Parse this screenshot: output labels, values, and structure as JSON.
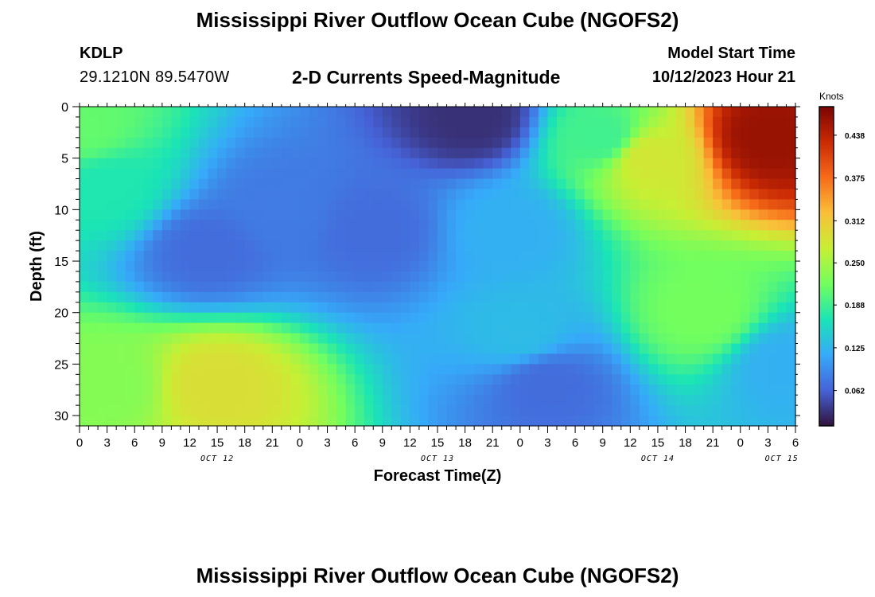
{
  "header": {
    "title": "Mississippi River Outflow Ocean Cube (NGOFS2)",
    "station_id": "KDLP",
    "coords": "29.1210N  89.5470W",
    "product": "2-D Currents Speed-Magnitude",
    "model_start_label": "Model Start Time",
    "model_start_value": "10/12/2023 Hour 21"
  },
  "footer": {
    "title": "Mississippi River Outflow Ocean Cube (NGOFS2)"
  },
  "colors": {
    "colormap": [
      "#30123b",
      "#4662d7",
      "#36aaf9",
      "#1ae4b6",
      "#72fe5e",
      "#c7ef34",
      "#fabf39",
      "#f66b19",
      "#ca2a04",
      "#7a0403"
    ]
  },
  "chart_data": {
    "type": "heatmap",
    "title": "2-D Currents Speed-Magnitude",
    "xlabel": "Forecast Time(Z)",
    "ylabel": "Depth (ft)",
    "x_tick_labels": [
      "0",
      "3",
      "6",
      "9",
      "12",
      "15",
      "18",
      "21",
      "0",
      "3",
      "6",
      "9",
      "12",
      "15",
      "18",
      "21",
      "0",
      "3",
      "6",
      "9",
      "12",
      "15",
      "18",
      "21",
      "0",
      "3",
      "6"
    ],
    "date_labels": [
      "OCT 12",
      "OCT 13",
      "OCT 14",
      "OCT 15"
    ],
    "x_range_hours": [
      0,
      78
    ],
    "ylim": [
      0,
      31
    ],
    "y_ticks": [
      0,
      5,
      10,
      15,
      20,
      25,
      30
    ],
    "y_inverted": true,
    "colorbar": {
      "label": "Knots",
      "ticks": [
        "0.062",
        "0.125",
        "0.188",
        "0.250",
        "0.312",
        "0.375",
        "0.438"
      ],
      "range": [
        0.01,
        0.48
      ]
    },
    "speed_anchors": [
      {
        "hour": 0,
        "depth_ft": 2,
        "knots": 0.21
      },
      {
        "hour": 3,
        "depth_ft": 8,
        "knots": 0.17
      },
      {
        "hour": 14,
        "depth_ft": 14,
        "knots": 0.07
      },
      {
        "hour": 22,
        "depth_ft": 10,
        "knots": 0.08
      },
      {
        "hour": 32,
        "depth_ft": 12,
        "knots": 0.07
      },
      {
        "hour": 43,
        "depth_ft": 1,
        "knots": 0.03
      },
      {
        "hour": 47,
        "depth_ft": 12,
        "knots": 0.12
      },
      {
        "hour": 48,
        "depth_ft": 22,
        "knots": 0.13
      },
      {
        "hour": 51,
        "depth_ft": 27,
        "knots": 0.07
      },
      {
        "hour": 57,
        "depth_ft": 3,
        "knots": 0.19
      },
      {
        "hour": 62,
        "depth_ft": 5,
        "knots": 0.28
      },
      {
        "hour": 75,
        "depth_ft": 3,
        "knots": 0.46
      },
      {
        "hour": 68,
        "depth_ft": 20,
        "knots": 0.22
      },
      {
        "hour": 77,
        "depth_ft": 25,
        "knots": 0.12
      },
      {
        "hour": 15,
        "depth_ft": 27,
        "knots": 0.29
      },
      {
        "hour": 3,
        "depth_ft": 27,
        "knots": 0.23
      }
    ]
  }
}
